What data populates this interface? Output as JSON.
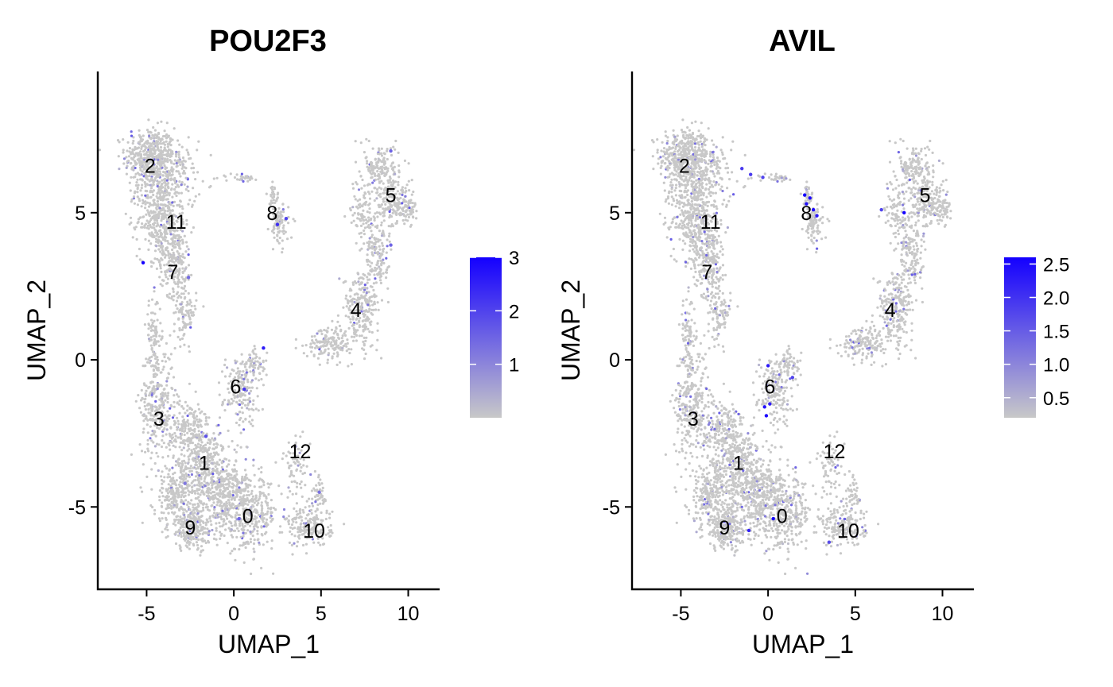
{
  "chart_data": [
    {
      "type": "scatter",
      "title": "POU2F3",
      "xlabel": "UMAP_1",
      "ylabel": "UMAP_2",
      "xlim": [
        -7.8,
        11.8
      ],
      "ylim": [
        -7.8,
        9.8
      ],
      "x_ticks": [
        -5,
        0,
        5,
        10
      ],
      "y_ticks": [
        -5,
        0,
        5
      ],
      "x_tick_labels": [
        "-5",
        "0",
        "5",
        "10"
      ],
      "y_tick_labels": [
        "-5",
        "0",
        "5"
      ],
      "grid": false,
      "point_color_low": "#c8c8c8",
      "point_color_high": "#1400ff",
      "cluster_labels": [
        {
          "label": "0",
          "x": 0.8,
          "y": -5.3
        },
        {
          "label": "1",
          "x": -1.7,
          "y": -3.5
        },
        {
          "label": "2",
          "x": -4.8,
          "y": 6.6
        },
        {
          "label": "3",
          "x": -4.3,
          "y": -2.0
        },
        {
          "label": "4",
          "x": 7.0,
          "y": 1.7
        },
        {
          "label": "5",
          "x": 9.0,
          "y": 5.6
        },
        {
          "label": "6",
          "x": 0.1,
          "y": -0.9
        },
        {
          "label": "7",
          "x": -3.5,
          "y": 3.0
        },
        {
          "label": "8",
          "x": 2.2,
          "y": 5.0
        },
        {
          "label": "9",
          "x": -2.5,
          "y": -5.7
        },
        {
          "label": "10",
          "x": 4.6,
          "y": -5.8
        },
        {
          "label": "11",
          "x": -3.3,
          "y": 4.7
        },
        {
          "label": "12",
          "x": 3.8,
          "y": -3.1
        }
      ],
      "colorbar": {
        "min": 0,
        "max": 3.0,
        "ticks": [
          1,
          2,
          3
        ],
        "tick_labels": [
          "1",
          "2",
          "3"
        ]
      },
      "highlight_points": [
        {
          "x": -5.2,
          "y": 3.3,
          "v": 3.0
        },
        {
          "x": 1.7,
          "y": 0.4,
          "v": 2.6
        },
        {
          "x": 2.5,
          "y": 4.6,
          "v": 2.3
        },
        {
          "x": 3.0,
          "y": 4.8,
          "v": 2.0
        },
        {
          "x": 0.6,
          "y": -1.0,
          "v": 2.2
        },
        {
          "x": -1.6,
          "y": -2.6,
          "v": 1.8
        },
        {
          "x": 9.0,
          "y": 7.1,
          "v": 1.5
        },
        {
          "x": 4.9,
          "y": -4.5,
          "v": 1.3
        },
        {
          "x": 0.3,
          "y": -5.4,
          "v": 1.5
        },
        {
          "x": -2.6,
          "y": 2.8,
          "v": 1.4
        },
        {
          "x": 9.0,
          "y": 3.9,
          "v": 1.5
        },
        {
          "x": -2.8,
          "y": -4.2,
          "v": 1.2
        }
      ]
    },
    {
      "type": "scatter",
      "title": "AVIL",
      "xlabel": "UMAP_1",
      "ylabel": "UMAP_2",
      "xlim": [
        -7.8,
        11.8
      ],
      "ylim": [
        -7.8,
        9.8
      ],
      "x_ticks": [
        -5,
        0,
        5,
        10
      ],
      "y_ticks": [
        -5,
        0,
        5
      ],
      "x_tick_labels": [
        "-5",
        "0",
        "5",
        "10"
      ],
      "y_tick_labels": [
        "-5",
        "0",
        "5"
      ],
      "grid": false,
      "point_color_low": "#c8c8c8",
      "point_color_high": "#1400ff",
      "cluster_labels": [
        {
          "label": "0",
          "x": 0.8,
          "y": -5.3
        },
        {
          "label": "1",
          "x": -1.7,
          "y": -3.5
        },
        {
          "label": "2",
          "x": -4.8,
          "y": 6.6
        },
        {
          "label": "3",
          "x": -4.3,
          "y": -2.0
        },
        {
          "label": "4",
          "x": 7.0,
          "y": 1.7
        },
        {
          "label": "5",
          "x": 9.0,
          "y": 5.6
        },
        {
          "label": "6",
          "x": 0.1,
          "y": -0.9
        },
        {
          "label": "7",
          "x": -3.5,
          "y": 3.0
        },
        {
          "label": "8",
          "x": 2.2,
          "y": 5.0
        },
        {
          "label": "9",
          "x": -2.5,
          "y": -5.7
        },
        {
          "label": "10",
          "x": 4.6,
          "y": -5.8
        },
        {
          "label": "11",
          "x": -3.3,
          "y": 4.7
        },
        {
          "label": "12",
          "x": 3.8,
          "y": -3.1
        }
      ],
      "colorbar": {
        "min": 0.2,
        "max": 2.6,
        "ticks": [
          0.5,
          1.0,
          1.5,
          2.0,
          2.5
        ],
        "tick_labels": [
          "0.5",
          "1.0",
          "1.5",
          "2.0",
          "2.5"
        ]
      },
      "highlight_points": [
        {
          "x": 2.1,
          "y": 5.6,
          "v": 2.6
        },
        {
          "x": 2.4,
          "y": 5.5,
          "v": 2.5
        },
        {
          "x": 2.6,
          "y": 5.1,
          "v": 2.5
        },
        {
          "x": 2.2,
          "y": 5.3,
          "v": 2.4
        },
        {
          "x": 2.8,
          "y": 4.9,
          "v": 2.3
        },
        {
          "x": 7.8,
          "y": 5.0,
          "v": 2.6
        },
        {
          "x": 0.3,
          "y": -5.4,
          "v": 2.6
        },
        {
          "x": -0.1,
          "y": -1.9,
          "v": 2.5
        },
        {
          "x": -0.2,
          "y": -1.6,
          "v": 2.4
        },
        {
          "x": 0.0,
          "y": -0.2,
          "v": 2.3
        },
        {
          "x": 0.1,
          "y": -1.5,
          "v": 2.2
        },
        {
          "x": -1.1,
          "y": -5.8,
          "v": 2.2
        },
        {
          "x": 1.4,
          "y": -0.6,
          "v": 1.8
        },
        {
          "x": 6.5,
          "y": 5.1,
          "v": 1.8
        },
        {
          "x": 3.5,
          "y": -6.2,
          "v": 1.7
        },
        {
          "x": -1.5,
          "y": 6.5,
          "v": 1.9
        },
        {
          "x": -1.0,
          "y": 6.3,
          "v": 1.9
        },
        {
          "x": -0.3,
          "y": 6.2,
          "v": 1.8
        }
      ]
    }
  ]
}
